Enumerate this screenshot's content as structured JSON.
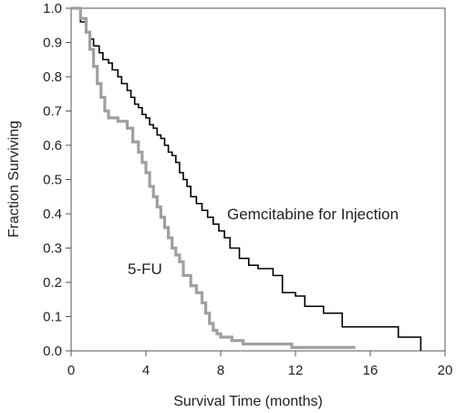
{
  "chart_data": {
    "type": "line",
    "xlabel": "Survival Time (months)",
    "ylabel": "Fraction Surviving",
    "xlim": [
      0,
      20
    ],
    "ylim": [
      0.0,
      1.0
    ],
    "x_ticks": [
      "0",
      "4",
      "8",
      "12",
      "16",
      "20"
    ],
    "y_ticks": [
      "0.0",
      "0.1",
      "0.2",
      "0.3",
      "0.4",
      "0.5",
      "0.6",
      "0.7",
      "0.8",
      "0.9",
      "1.0"
    ],
    "grid": false,
    "series": [
      {
        "name": "Gemcitabine for Injection",
        "color": "#000000",
        "step": true,
        "x": [
          0,
          0.5,
          0.8,
          1.0,
          1.2,
          1.5,
          1.7,
          2.0,
          2.2,
          2.5,
          2.7,
          3.0,
          3.2,
          3.4,
          3.6,
          3.8,
          4.0,
          4.2,
          4.4,
          4.6,
          4.8,
          5.0,
          5.2,
          5.4,
          5.6,
          5.8,
          6.0,
          6.2,
          6.4,
          6.7,
          7.0,
          7.3,
          7.6,
          7.9,
          8.2,
          8.5,
          9.0,
          9.5,
          10.0,
          10.8,
          11.3,
          12.0,
          12.5,
          13.5,
          14.5,
          17.5,
          18.7
        ],
        "y": [
          1.0,
          0.96,
          0.93,
          0.91,
          0.89,
          0.87,
          0.85,
          0.84,
          0.82,
          0.8,
          0.78,
          0.76,
          0.74,
          0.72,
          0.71,
          0.69,
          0.68,
          0.66,
          0.65,
          0.63,
          0.62,
          0.6,
          0.58,
          0.57,
          0.55,
          0.52,
          0.5,
          0.48,
          0.45,
          0.43,
          0.41,
          0.39,
          0.37,
          0.35,
          0.33,
          0.3,
          0.27,
          0.25,
          0.24,
          0.22,
          0.17,
          0.16,
          0.13,
          0.11,
          0.07,
          0.04,
          0.0
        ]
      },
      {
        "name": "5-FU",
        "color": "#a0a0a0",
        "step": true,
        "x": [
          0,
          0.5,
          0.8,
          1.0,
          1.2,
          1.4,
          1.6,
          1.8,
          2.0,
          2.5,
          3.0,
          3.3,
          3.6,
          3.8,
          4.0,
          4.2,
          4.4,
          4.6,
          4.8,
          5.0,
          5.2,
          5.4,
          5.6,
          5.8,
          6.0,
          6.4,
          6.7,
          7.0,
          7.2,
          7.4,
          7.6,
          7.8,
          8.0,
          8.6,
          9.2,
          10.0,
          11.8,
          15.2
        ],
        "y": [
          1.0,
          0.97,
          0.93,
          0.88,
          0.83,
          0.78,
          0.74,
          0.7,
          0.68,
          0.67,
          0.65,
          0.61,
          0.58,
          0.55,
          0.52,
          0.48,
          0.45,
          0.42,
          0.39,
          0.36,
          0.33,
          0.3,
          0.28,
          0.26,
          0.22,
          0.19,
          0.17,
          0.14,
          0.11,
          0.08,
          0.06,
          0.05,
          0.04,
          0.03,
          0.02,
          0.02,
          0.01,
          0.01
        ]
      }
    ],
    "annotations": [
      "Gemcitabine for Injection",
      "5-FU"
    ]
  }
}
